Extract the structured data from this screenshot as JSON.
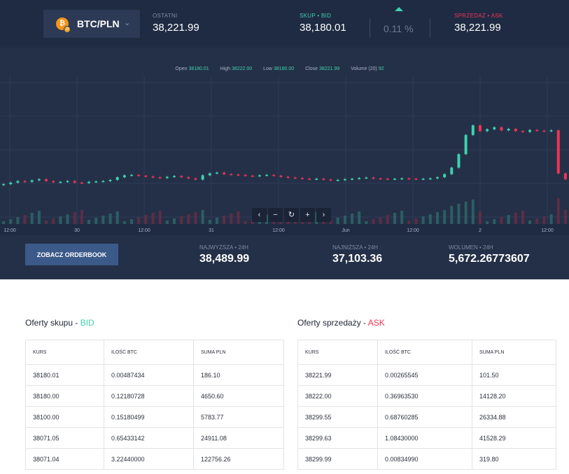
{
  "ticker": {
    "pair": "BTC/PLN",
    "last_label": "OSTATNI",
    "last_value": "38,221.99",
    "bid_label": "SKUP • BID",
    "bid_value": "38,180.01",
    "change_value": "0.11 %",
    "ask_label": "SPRZEDAŻ • ASK",
    "ask_value": "38,221.99"
  },
  "ohlc": {
    "open_label": "Open",
    "open": "38180.01",
    "high_label": "High",
    "high": "38222.00",
    "low_label": "Low",
    "low": "38180.00",
    "close_label": "Close",
    "close": "38221.99",
    "volume_label": "Volume (20)",
    "volume": "92"
  },
  "chart_data": {
    "type": "candlestick",
    "x_tick_labels": [
      "12:00",
      "30",
      "12:00",
      "31",
      "12:00",
      "Jun",
      "12:00",
      "2",
      "12:00"
    ],
    "ylim": [
      36000,
      39500
    ],
    "close_series": [
      36820,
      36860,
      36900,
      36880,
      36920,
      36950,
      36900,
      36870,
      36880,
      36900,
      36860,
      36850,
      36880,
      36890,
      36900,
      36930,
      37000,
      37050,
      37060,
      37040,
      37020,
      37000,
      36980,
      37010,
      37030,
      37000,
      36970,
      36940,
      37050,
      37100,
      37120,
      37080,
      37070,
      37060,
      37040,
      37030,
      37050,
      37060,
      37040,
      37010,
      36990,
      36980,
      36960,
      36950,
      36960,
      36940,
      36920,
      36930,
      36950,
      36960,
      36980,
      36990,
      36970,
      36960,
      36950,
      36960,
      36970,
      36960,
      36950,
      36960,
      36970,
      37000,
      37080,
      37250,
      37600,
      38100,
      38350,
      38200,
      38250,
      38300,
      38220,
      38260,
      38200,
      38180,
      38230,
      38210,
      38200,
      38222,
      37100,
      36950
    ]
  },
  "controls": {
    "prev": "‹",
    "zoom_out": "−",
    "reset": "↻",
    "zoom_in": "+",
    "next": "›"
  },
  "summary": {
    "orderbook_button": "ZOBACZ ORDERBOOK",
    "high_label": "NAJWYŻSZA • 24H",
    "high_value": "38,489.99",
    "low_label": "NAJNIŻSZA • 24H",
    "low_value": "37,103.36",
    "volume_label": "WOLUMEN • 24H",
    "volume_value": "5,672.26773607"
  },
  "bids": {
    "title": "Oferty skupu - ",
    "title_accent": "BID",
    "headers": [
      "KURS",
      "ILOŚĆ BTC",
      "SUMA PLN"
    ],
    "rows": [
      [
        "38180.01",
        "0.00487434",
        "186.10"
      ],
      [
        "38180.00",
        "0.12180728",
        "4650.60"
      ],
      [
        "38100.00",
        "0.15180499",
        "5783.77"
      ],
      [
        "38071.05",
        "0.65433142",
        "24911.08"
      ],
      [
        "38071.04",
        "3.22440000",
        "122756.26"
      ]
    ]
  },
  "asks": {
    "title": "Oferty sprzedaży - ",
    "title_accent": "ASK",
    "headers": [
      "KURS",
      "ILOŚĆ BTC",
      "SUMA PLN"
    ],
    "rows": [
      [
        "38221.99",
        "0.00265545",
        "101.50"
      ],
      [
        "38222.00",
        "0.36963530",
        "14128.20"
      ],
      [
        "38299.55",
        "0.68760285",
        "26334.88"
      ],
      [
        "38299.63",
        "1.08430000",
        "41528.29"
      ],
      [
        "38299.99",
        "0.00834990",
        "319.80"
      ]
    ]
  },
  "colors": {
    "up": "#3fd0b0",
    "down": "#ef3355",
    "bg": "#243047",
    "btn": "#3b5a89"
  }
}
